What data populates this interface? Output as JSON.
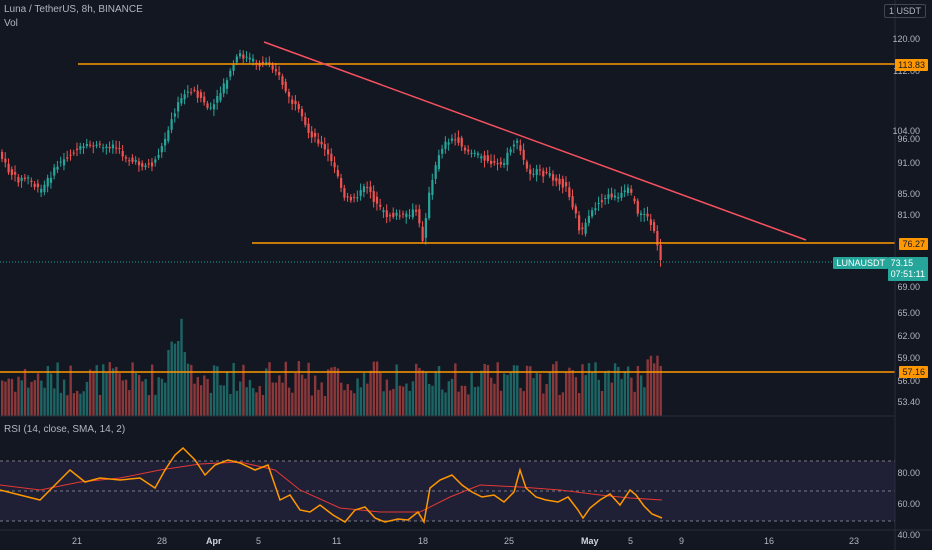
{
  "header": {
    "title": "Luna / TetherUS, 8h, BINANCE",
    "vol_label": "Vol",
    "rsi_label": "RSI (14, close, SMA, 14, 2)",
    "currency_badge": "1 USDT"
  },
  "price_axis": {
    "labels": [
      "120.00",
      "112.00",
      "104.00",
      "96.00",
      "91.00",
      "85.00",
      "81.00",
      "69.00",
      "65.00",
      "62.00",
      "59.00",
      "56.00",
      "53.40"
    ]
  },
  "rsi_axis": {
    "labels": [
      "80.00",
      "60.00",
      "40.00"
    ]
  },
  "time_axis": {
    "labels": [
      {
        "text": "21",
        "bold": false
      },
      {
        "text": "28",
        "bold": false
      },
      {
        "text": "Apr",
        "bold": true
      },
      {
        "text": "5",
        "bold": false
      },
      {
        "text": "11",
        "bold": false
      },
      {
        "text": "18",
        "bold": false
      },
      {
        "text": "25",
        "bold": false
      },
      {
        "text": "May",
        "bold": true
      },
      {
        "text": "5",
        "bold": false
      },
      {
        "text": "9",
        "bold": false
      },
      {
        "text": "16",
        "bold": false
      },
      {
        "text": "23",
        "bold": false
      }
    ]
  },
  "levels": {
    "resistance": "113.83",
    "support": "76.27",
    "volume_line": "57.16"
  },
  "last_price": {
    "symbol": "LUNAUSDT",
    "price": "73.15",
    "countdown": "07:51:11"
  },
  "colors": {
    "background": "#131722",
    "up": "#26a69a",
    "down": "#ef5350",
    "level_line": "#ff9800",
    "trend_line": "#f7525f",
    "rsi_line": "#ff9800",
    "rsi_ma": "#e53935"
  }
}
